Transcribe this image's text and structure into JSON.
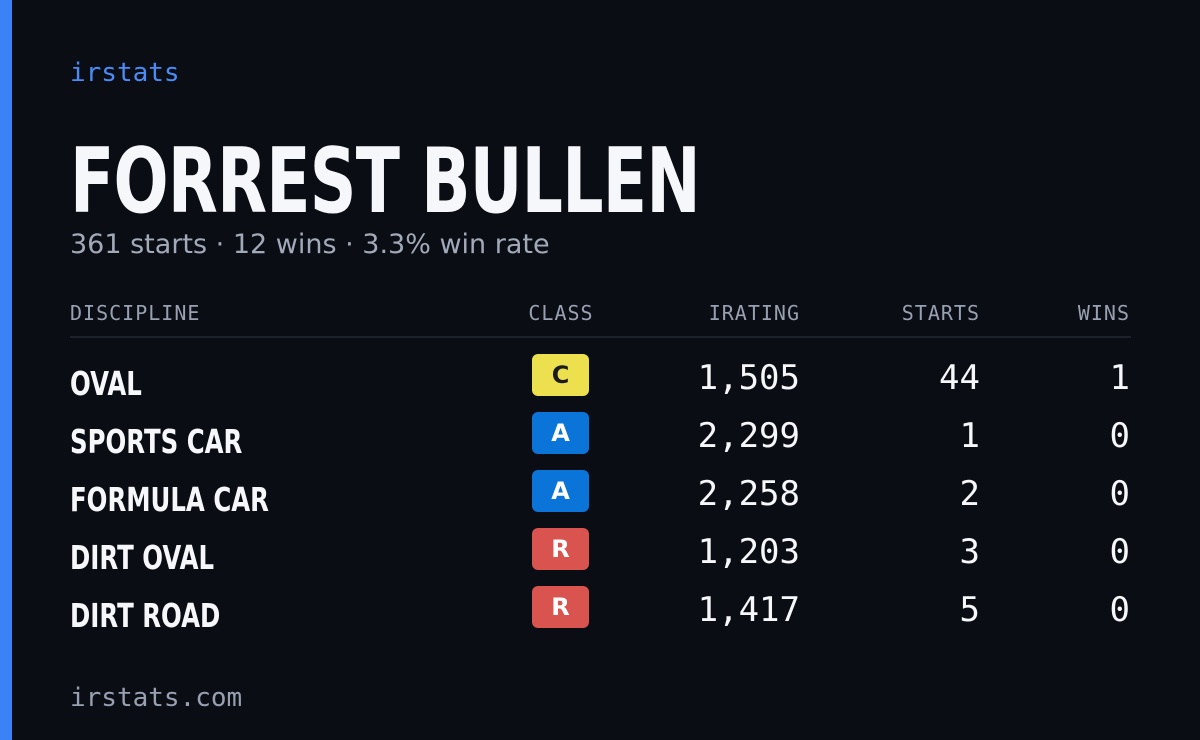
{
  "header": {
    "brand": "irstats",
    "name": "FORREST BULLEN",
    "summary": "361 starts · 12 wins · 3.3% win rate"
  },
  "table": {
    "columns": [
      "DISCIPLINE",
      "CLASS",
      "IRATING",
      "STARTS",
      "WINS"
    ],
    "rows": [
      [
        "OVAL",
        "C",
        "1,505",
        "44",
        "1"
      ],
      [
        "SPORTS CAR",
        "A",
        "2,299",
        "1",
        "0"
      ],
      [
        "FORMULA CAR",
        "A",
        "2,258",
        "2",
        "0"
      ],
      [
        "DIRT OVAL",
        "R",
        "1,203",
        "3",
        "0"
      ],
      [
        "DIRT ROAD",
        "R",
        "1,417",
        "5",
        "0"
      ]
    ]
  },
  "footer": {
    "url": "irstats.com"
  }
}
